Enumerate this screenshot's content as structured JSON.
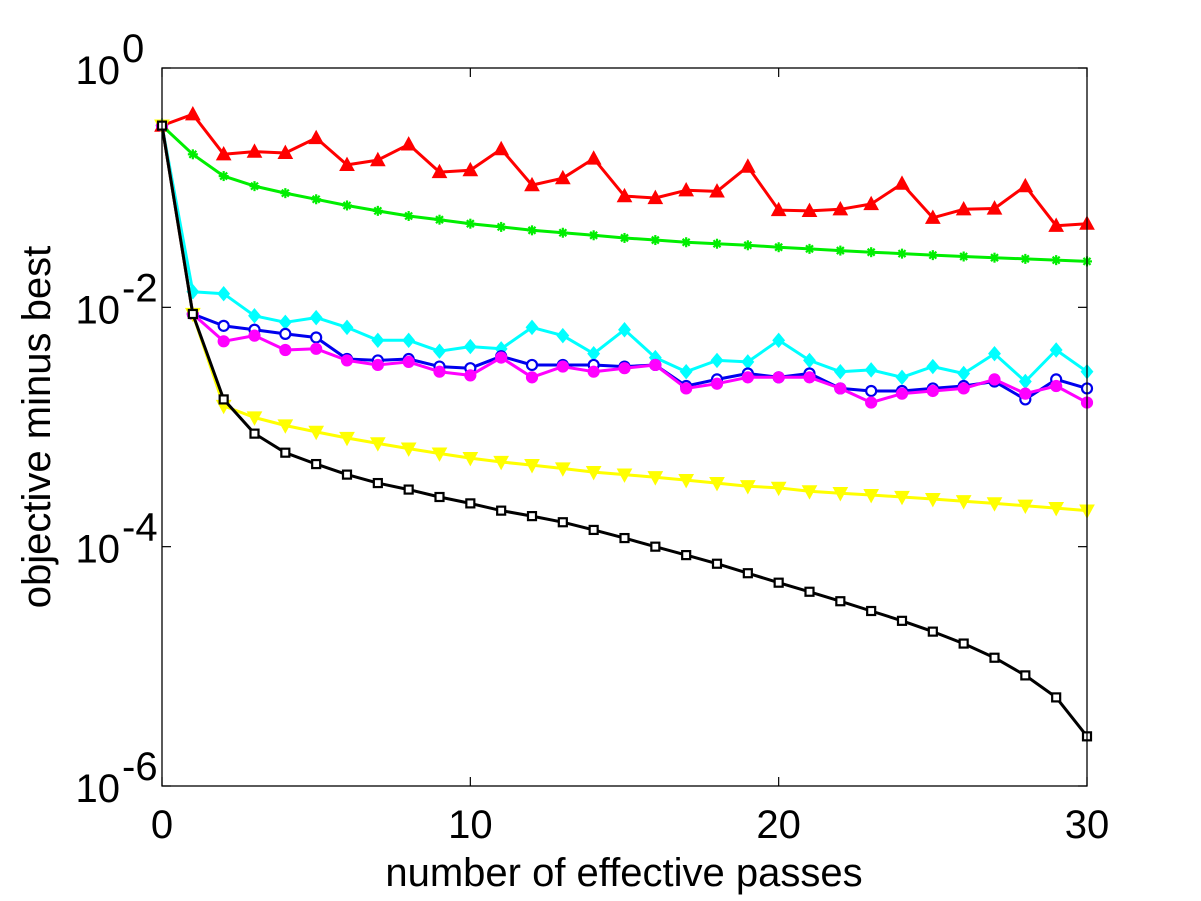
{
  "chart_data": {
    "type": "line",
    "title": "",
    "xlabel": "number of effective passes",
    "ylabel": "objective minus best",
    "xlim": [
      0,
      30
    ],
    "ylim": [
      1e-06,
      1
    ],
    "yscale": "log",
    "grid": false,
    "x_ticks": [
      0,
      10,
      20,
      30
    ],
    "x_tick_labels": [
      "0",
      "10",
      "20",
      "30"
    ],
    "y_ticks": [
      {
        "value": 1e-06,
        "base": "10",
        "exp": "-6"
      },
      {
        "value": 0.0001,
        "base": "10",
        "exp": "-4"
      },
      {
        "value": 0.01,
        "base": "10",
        "exp": "-2"
      },
      {
        "value": 1,
        "base": "10",
        "exp": "0"
      }
    ],
    "x": [
      0,
      1,
      2,
      3,
      4,
      5,
      6,
      7,
      8,
      9,
      10,
      11,
      12,
      13,
      14,
      15,
      16,
      17,
      18,
      19,
      20,
      21,
      22,
      23,
      24,
      25,
      26,
      27,
      28,
      29,
      30
    ],
    "series": [
      {
        "name": "red-triangle",
        "color": "#ff0000",
        "marker": "triangle-up",
        "values": [
          0.33,
          0.41,
          0.19,
          0.2,
          0.195,
          0.26,
          0.155,
          0.17,
          0.23,
          0.135,
          0.14,
          0.21,
          0.105,
          0.12,
          0.175,
          0.085,
          0.082,
          0.095,
          0.093,
          0.15,
          0.065,
          0.064,
          0.066,
          0.073,
          0.108,
          0.056,
          0.066,
          0.067,
          0.103,
          0.048,
          0.05
        ]
      },
      {
        "name": "green-star",
        "color": "#00ee00",
        "marker": "star",
        "values": [
          0.33,
          0.19,
          0.125,
          0.103,
          0.09,
          0.08,
          0.071,
          0.064,
          0.058,
          0.054,
          0.05,
          0.047,
          0.044,
          0.042,
          0.04,
          0.038,
          0.0365,
          0.035,
          0.034,
          0.033,
          0.0318,
          0.0308,
          0.0298,
          0.0289,
          0.0281,
          0.0273,
          0.0266,
          0.026,
          0.0254,
          0.0248,
          0.0242
        ]
      },
      {
        "name": "cyan-diamond",
        "color": "#00ffff",
        "marker": "diamond",
        "values": [
          0.33,
          0.0135,
          0.013,
          0.0085,
          0.0075,
          0.0082,
          0.0068,
          0.0053,
          0.0053,
          0.0043,
          0.0047,
          0.0045,
          0.0068,
          0.0058,
          0.0041,
          0.0065,
          0.0038,
          0.0029,
          0.0036,
          0.0035,
          0.0053,
          0.0036,
          0.0029,
          0.003,
          0.0026,
          0.0032,
          0.0028,
          0.0041,
          0.0024,
          0.0044,
          0.0029
        ]
      },
      {
        "name": "blue-circle",
        "color": "#0000ee",
        "marker": "circle",
        "values": [
          0.33,
          0.0088,
          0.007,
          0.0065,
          0.006,
          0.0056,
          0.0037,
          0.0036,
          0.0037,
          0.0032,
          0.0031,
          0.0039,
          0.0033,
          0.0033,
          0.0033,
          0.0032,
          0.0033,
          0.0022,
          0.0025,
          0.0028,
          0.0026,
          0.0028,
          0.0021,
          0.002,
          0.002,
          0.0021,
          0.0022,
          0.0024,
          0.0017,
          0.0025,
          0.0021
        ]
      },
      {
        "name": "magenta-circle",
        "color": "#ff00ff",
        "marker": "filled-circle",
        "values": [
          0.33,
          0.0088,
          0.0052,
          0.0058,
          0.0044,
          0.0045,
          0.0036,
          0.0033,
          0.0035,
          0.0029,
          0.0027,
          0.0038,
          0.0026,
          0.0032,
          0.0029,
          0.0031,
          0.0033,
          0.0021,
          0.0023,
          0.0026,
          0.0026,
          0.0026,
          0.0021,
          0.0016,
          0.0019,
          0.002,
          0.0021,
          0.0025,
          0.0019,
          0.0022,
          0.0016
        ]
      },
      {
        "name": "yellow-triangle-down",
        "color": "#ffff00",
        "marker": "triangle-down",
        "values": [
          0.33,
          0.0088,
          0.0015,
          0.0012,
          0.00103,
          0.00091,
          0.00081,
          0.00073,
          0.00066,
          0.0006,
          0.00055,
          0.00051,
          0.00048,
          0.00045,
          0.00042,
          0.0004,
          0.00038,
          0.00036,
          0.00034,
          0.00032,
          0.00031,
          0.00029,
          0.00028,
          0.00027,
          0.00026,
          0.00025,
          0.00024,
          0.00023,
          0.00022,
          0.00021,
          0.0002
        ]
      },
      {
        "name": "black-square",
        "color": "#000000",
        "marker": "square",
        "values": [
          0.33,
          0.0088,
          0.0017,
          0.00088,
          0.00061,
          0.00049,
          0.0004,
          0.00034,
          0.0003,
          0.00026,
          0.00023,
          0.0002,
          0.00018,
          0.00016,
          0.000138,
          0.000118,
          0.0001,
          8.5e-05,
          7.2e-05,
          6e-05,
          5e-05,
          4.2e-05,
          3.5e-05,
          2.9e-05,
          2.4e-05,
          1.95e-05,
          1.55e-05,
          1.18e-05,
          8.4e-06,
          5.5e-06,
          2.6e-06
        ]
      }
    ]
  }
}
